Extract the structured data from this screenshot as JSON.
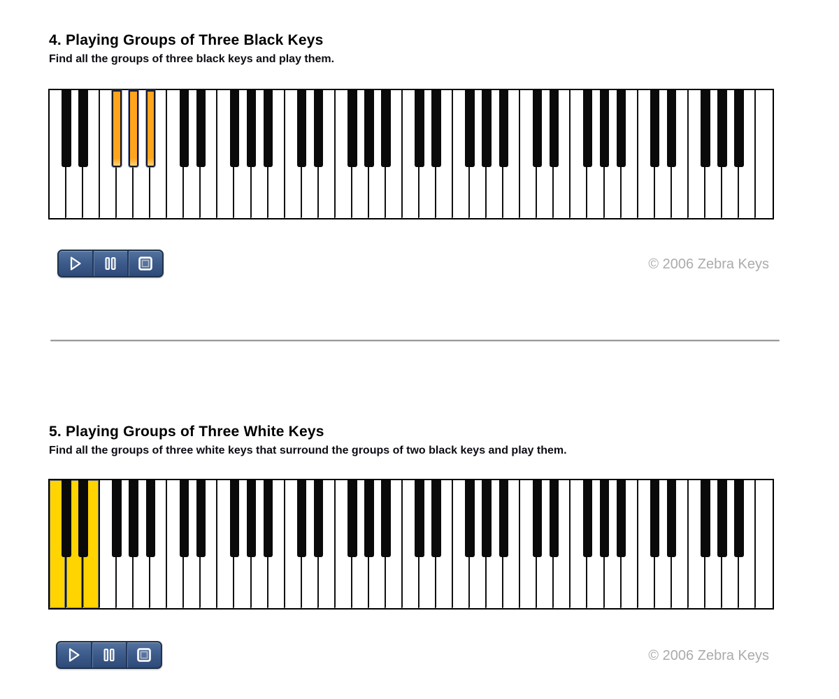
{
  "page": {
    "background": "#ffffff"
  },
  "colors": {
    "key_white": "#ffffff",
    "key_black": "#0a0a0a",
    "key_separator": "#101010",
    "keyboard_border": "#000000",
    "divider": "#9a9a9a",
    "copyright_text": "#ababab",
    "player_bar_top": "#55739f",
    "player_bar_bottom": "#2e4a77",
    "player_border": "#20334d",
    "player_icon": "#ffffff",
    "orange_highlight": "#FFA41C",
    "gold_highlight": "#FFD400"
  },
  "sections": [
    {
      "heading": "4. Playing Groups of Three Black Keys",
      "subtitle": "Find all the groups of three black keys and play them.",
      "copyright": "© 2006 Zebra Keys",
      "player": {
        "play_label": "Play",
        "pause_label": "Pause",
        "stop_label": "Stop"
      },
      "keyboard": {
        "type": "piano",
        "white_key_count": 43,
        "octaves": 6,
        "range": "C to C, 6 octaves",
        "black_key_offsets_per_octave": [
          1,
          2,
          4,
          5,
          6
        ],
        "highlighted_black_indices": [
          2,
          3,
          4
        ],
        "highlighted_black_notes": [
          "F#1",
          "G#1",
          "A#1"
        ],
        "highlighted_white_indices": [],
        "highlighted_white_notes": [],
        "highlight_color": "#FFA41C",
        "highlight_tip_color": "#FFD27A",
        "highlight_outline_color": "#4A66C8"
      }
    },
    {
      "heading": "5. Playing Groups of Three White Keys",
      "subtitle": "Find all the groups of three white keys that surround the groups of two black keys and play them.",
      "copyright": "© 2006 Zebra Keys",
      "player": {
        "play_label": "Play",
        "pause_label": "Pause",
        "stop_label": "Stop"
      },
      "keyboard": {
        "type": "piano",
        "white_key_count": 43,
        "octaves": 6,
        "range": "C to C, 6 octaves",
        "black_key_offsets_per_octave": [
          1,
          2,
          4,
          5,
          6
        ],
        "highlighted_black_indices": [],
        "highlighted_black_notes": [],
        "highlighted_white_indices": [
          0,
          1,
          2
        ],
        "highlighted_white_notes": [
          "C1",
          "D1",
          "E1"
        ],
        "highlight_color": "#FFD400",
        "highlight_tip_color": "#FFE87A",
        "highlight_outline_color": "#2244B4"
      }
    }
  ]
}
